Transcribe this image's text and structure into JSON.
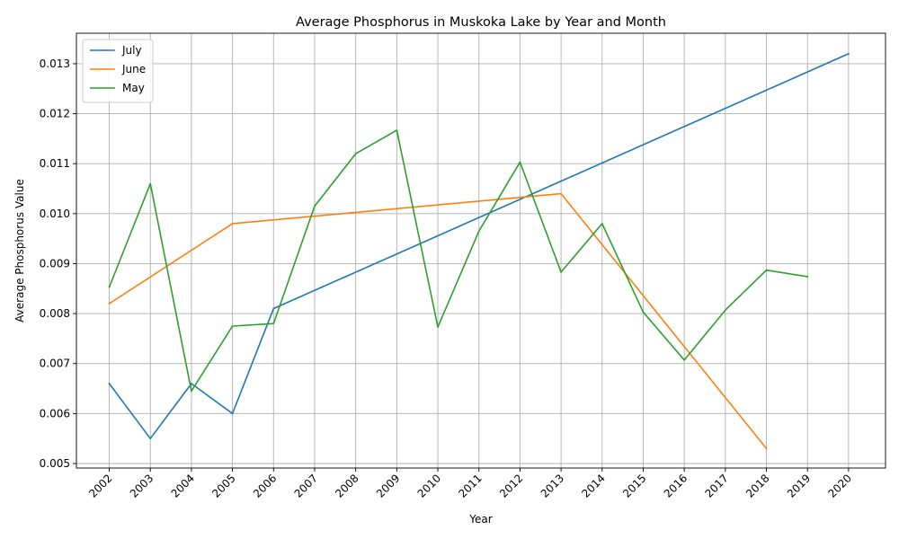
{
  "chart_data": {
    "type": "line",
    "title": "Average Phosphorus in Muskoka Lake by Year and Month",
    "xlabel": "Year",
    "ylabel": "Average Phosphorus Value",
    "xlim": [
      2001.2,
      2020.9
    ],
    "ylim": [
      0.00491,
      0.01361
    ],
    "grid": true,
    "legend_position": "upper-left",
    "x_ticks": [
      2002,
      2003,
      2004,
      2005,
      2006,
      2007,
      2008,
      2009,
      2010,
      2011,
      2012,
      2013,
      2014,
      2015,
      2016,
      2017,
      2018,
      2019,
      2020
    ],
    "x_tick_labels": [
      "2002",
      "2003",
      "2004",
      "2005",
      "2006",
      "2007",
      "2008",
      "2009",
      "2010",
      "2011",
      "2012",
      "2013",
      "2014",
      "2015",
      "2016",
      "2017",
      "2018",
      "2019",
      "2020"
    ],
    "y_ticks": [
      0.005,
      0.006,
      0.007,
      0.008,
      0.009,
      0.01,
      0.011,
      0.012,
      0.013
    ],
    "y_tick_labels": [
      "0.005",
      "0.006",
      "0.007",
      "0.008",
      "0.009",
      "0.010",
      "0.011",
      "0.012",
      "0.013"
    ],
    "series": [
      {
        "name": "July",
        "color": "#1f77b4",
        "points": [
          [
            2002,
            0.0066
          ],
          [
            2003,
            0.0055
          ],
          [
            2004,
            0.0066
          ],
          [
            2005,
            0.006
          ],
          [
            2006,
            0.0081
          ],
          [
            2020,
            0.0132
          ]
        ]
      },
      {
        "name": "June",
        "color": "#ff7f0e",
        "points": [
          [
            2002,
            0.0082
          ],
          [
            2005,
            0.0098
          ],
          [
            2013,
            0.0104
          ],
          [
            2018,
            0.0053
          ]
        ]
      },
      {
        "name": "May",
        "color": "#2ca02c",
        "points": [
          [
            2002,
            0.00853
          ],
          [
            2003,
            0.0106
          ],
          [
            2004,
            0.00645
          ],
          [
            2005,
            0.00775
          ],
          [
            2006,
            0.0078
          ],
          [
            2007,
            0.01015
          ],
          [
            2008,
            0.0112
          ],
          [
            2009,
            0.01167
          ],
          [
            2010,
            0.00773
          ],
          [
            2011,
            0.00965
          ],
          [
            2012,
            0.01103
          ],
          [
            2013,
            0.00883
          ],
          [
            2014,
            0.0098
          ],
          [
            2015,
            0.00803
          ],
          [
            2016,
            0.00707
          ],
          [
            2017,
            0.00807
          ],
          [
            2018,
            0.00887
          ],
          [
            2019,
            0.00874
          ]
        ]
      }
    ]
  }
}
